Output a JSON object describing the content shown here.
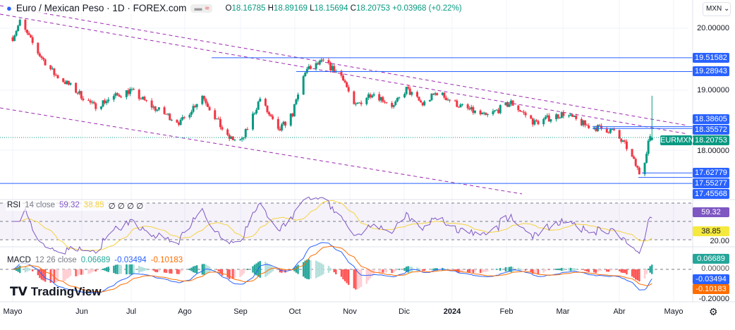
{
  "header": {
    "symbol_title": "Euro / Mexican Peso · 1D · FOREX.com",
    "o_label": "O",
    "o": "18.16785",
    "h_label": "H",
    "h": "18.89169",
    "l_label": "L",
    "l": "18.15694",
    "c_label": "C",
    "c": "18.20753",
    "change": "+0.03968 (+0.22%)"
  },
  "currency_select": "MXN",
  "symbol_tag": "EURMXN",
  "price_axis": [
    "20.00000",
    "19.00000",
    "18.00000"
  ],
  "levels": [
    {
      "value": "19.51582",
      "color": "#2962ff"
    },
    {
      "value": "19.28943",
      "color": "#2962ff"
    },
    {
      "value": "18.38605",
      "color": "#2962ff"
    },
    {
      "value": "18.35572",
      "color": "#2962ff"
    },
    {
      "value": "18.20753",
      "color": "#089981"
    },
    {
      "value": "17.62779",
      "color": "#2962ff"
    },
    {
      "value": "17.55277",
      "color": "#2962ff"
    },
    {
      "value": "17.45568",
      "color": "#2962ff"
    }
  ],
  "rsi": {
    "label": "RSI",
    "params": "14 close",
    "value": "59.32",
    "ma": "38.85",
    "extra": "∅ ∅ ∅ ∅",
    "axis": "20.00",
    "color": "#7e57c2",
    "ma_color": "#f5d33f"
  },
  "macd": {
    "label": "MACD",
    "params": "12 26 close",
    "hist": "0.06689",
    "macd": "-0.03494",
    "signal": "-0.10183",
    "axis_top": "0.00000",
    "axis": "-0.20000"
  },
  "time_axis": [
    "Mayo",
    "Jun",
    "Jul",
    "Ago",
    "Sep",
    "Oct",
    "Nov",
    "Dic",
    "2024",
    "Feb",
    "Mar",
    "Abr",
    "Mayo"
  ],
  "brand": "TradingView",
  "chart_data": {
    "type": "candlestick",
    "ylim": [
      17.45,
      20.25
    ],
    "up_color": "#089981",
    "down_color": "#f23645",
    "close_waypoints": [
      [
        "2023-05-01",
        19.85
      ],
      [
        "2023-05-05",
        20.1
      ],
      [
        "2023-05-15",
        19.6
      ],
      [
        "2023-05-24",
        19.25
      ],
      [
        "2023-06-02",
        19.05
      ],
      [
        "2023-06-15",
        18.72
      ],
      [
        "2023-06-28",
        18.9
      ],
      [
        "2023-07-05",
        18.98
      ],
      [
        "2023-07-18",
        18.7
      ],
      [
        "2023-08-02",
        18.45
      ],
      [
        "2023-08-14",
        18.9
      ],
      [
        "2023-08-28",
        18.2
      ],
      [
        "2023-09-05",
        18.15
      ],
      [
        "2023-09-15",
        18.85
      ],
      [
        "2023-09-25",
        18.3
      ],
      [
        "2023-10-03",
        18.6
      ],
      [
        "2023-10-10",
        19.3
      ],
      [
        "2023-10-20",
        19.45
      ],
      [
        "2023-10-31",
        19.2
      ],
      [
        "2023-11-06",
        18.7
      ],
      [
        "2023-11-16",
        18.95
      ],
      [
        "2023-11-28",
        18.72
      ],
      [
        "2023-12-05",
        19.0
      ],
      [
        "2023-12-14",
        18.75
      ],
      [
        "2023-12-22",
        18.95
      ],
      [
        "2024-01-04",
        18.72
      ],
      [
        "2024-01-18",
        18.55
      ],
      [
        "2024-02-01",
        18.78
      ],
      [
        "2024-02-14",
        18.45
      ],
      [
        "2024-03-01",
        18.6
      ],
      [
        "2024-03-14",
        18.4
      ],
      [
        "2024-03-28",
        18.32
      ],
      [
        "2024-04-05",
        18.05
      ],
      [
        "2024-04-12",
        17.63
      ],
      [
        "2024-04-15",
        17.85
      ],
      [
        "2024-04-17",
        18.15
      ],
      [
        "2024-04-19",
        18.20753
      ]
    ]
  }
}
